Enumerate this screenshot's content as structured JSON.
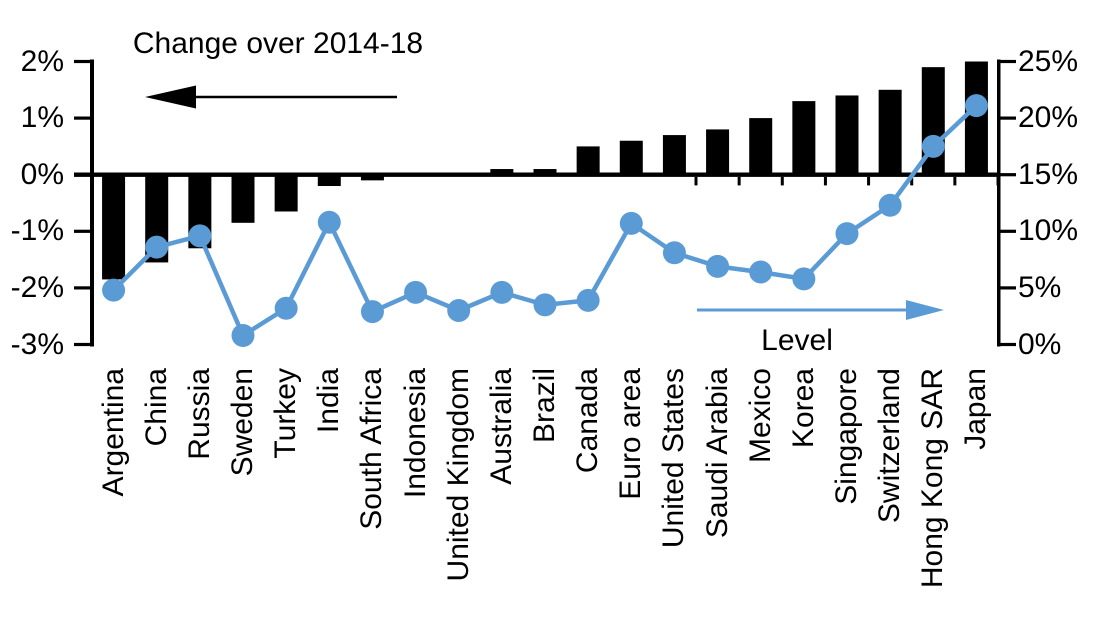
{
  "chart_data": {
    "type": "combo",
    "categories": [
      "Argentina",
      "China",
      "Russia",
      "Sweden",
      "Turkey",
      "India",
      "South Africa",
      "Indonesia",
      "United Kingdom",
      "Australia",
      "Brazil",
      "Canada",
      "Euro area",
      "United States",
      "Saudi Arabia",
      "Mexico",
      "Korea",
      "Singapore",
      "Switzerland",
      "Hong Kong SAR",
      "Japan"
    ],
    "series": [
      {
        "name": "Change over 2014-18",
        "type": "bar",
        "axis": "left",
        "color": "#000000",
        "values": [
          -1.85,
          -1.55,
          -1.3,
          -0.85,
          -0.65,
          -0.2,
          -0.1,
          0,
          0,
          0.1,
          0.1,
          0.5,
          0.6,
          0.7,
          0.8,
          1.0,
          1.3,
          1.4,
          1.5,
          1.9,
          2.0
        ]
      },
      {
        "name": "Level",
        "type": "line",
        "axis": "right",
        "color": "#5B9BD5",
        "values": [
          4.8,
          8.6,
          9.6,
          0.8,
          3.2,
          10.8,
          2.9,
          4.6,
          3.0,
          4.6,
          3.5,
          3.9,
          10.7,
          8.1,
          6.9,
          6.4,
          5.8,
          9.8,
          12.3,
          17.5,
          21.1
        ]
      }
    ],
    "left_axis": {
      "min": -3,
      "max": 2,
      "tick_labels": [
        "2%",
        "1%",
        "0%",
        "-1%",
        "-2%",
        "-3%"
      ],
      "tick_values": [
        2,
        1,
        0,
        -1,
        -2,
        -3
      ]
    },
    "right_axis": {
      "min": 0,
      "max": 25,
      "tick_labels": [
        "25%",
        "20%",
        "15%",
        "10%",
        "5%",
        "0%"
      ],
      "tick_values": [
        25,
        20,
        15,
        10,
        5,
        0
      ]
    },
    "legend": "none",
    "grid": false,
    "annotations": {
      "bar_arrow_direction": "left",
      "line_arrow_direction": "right"
    }
  }
}
